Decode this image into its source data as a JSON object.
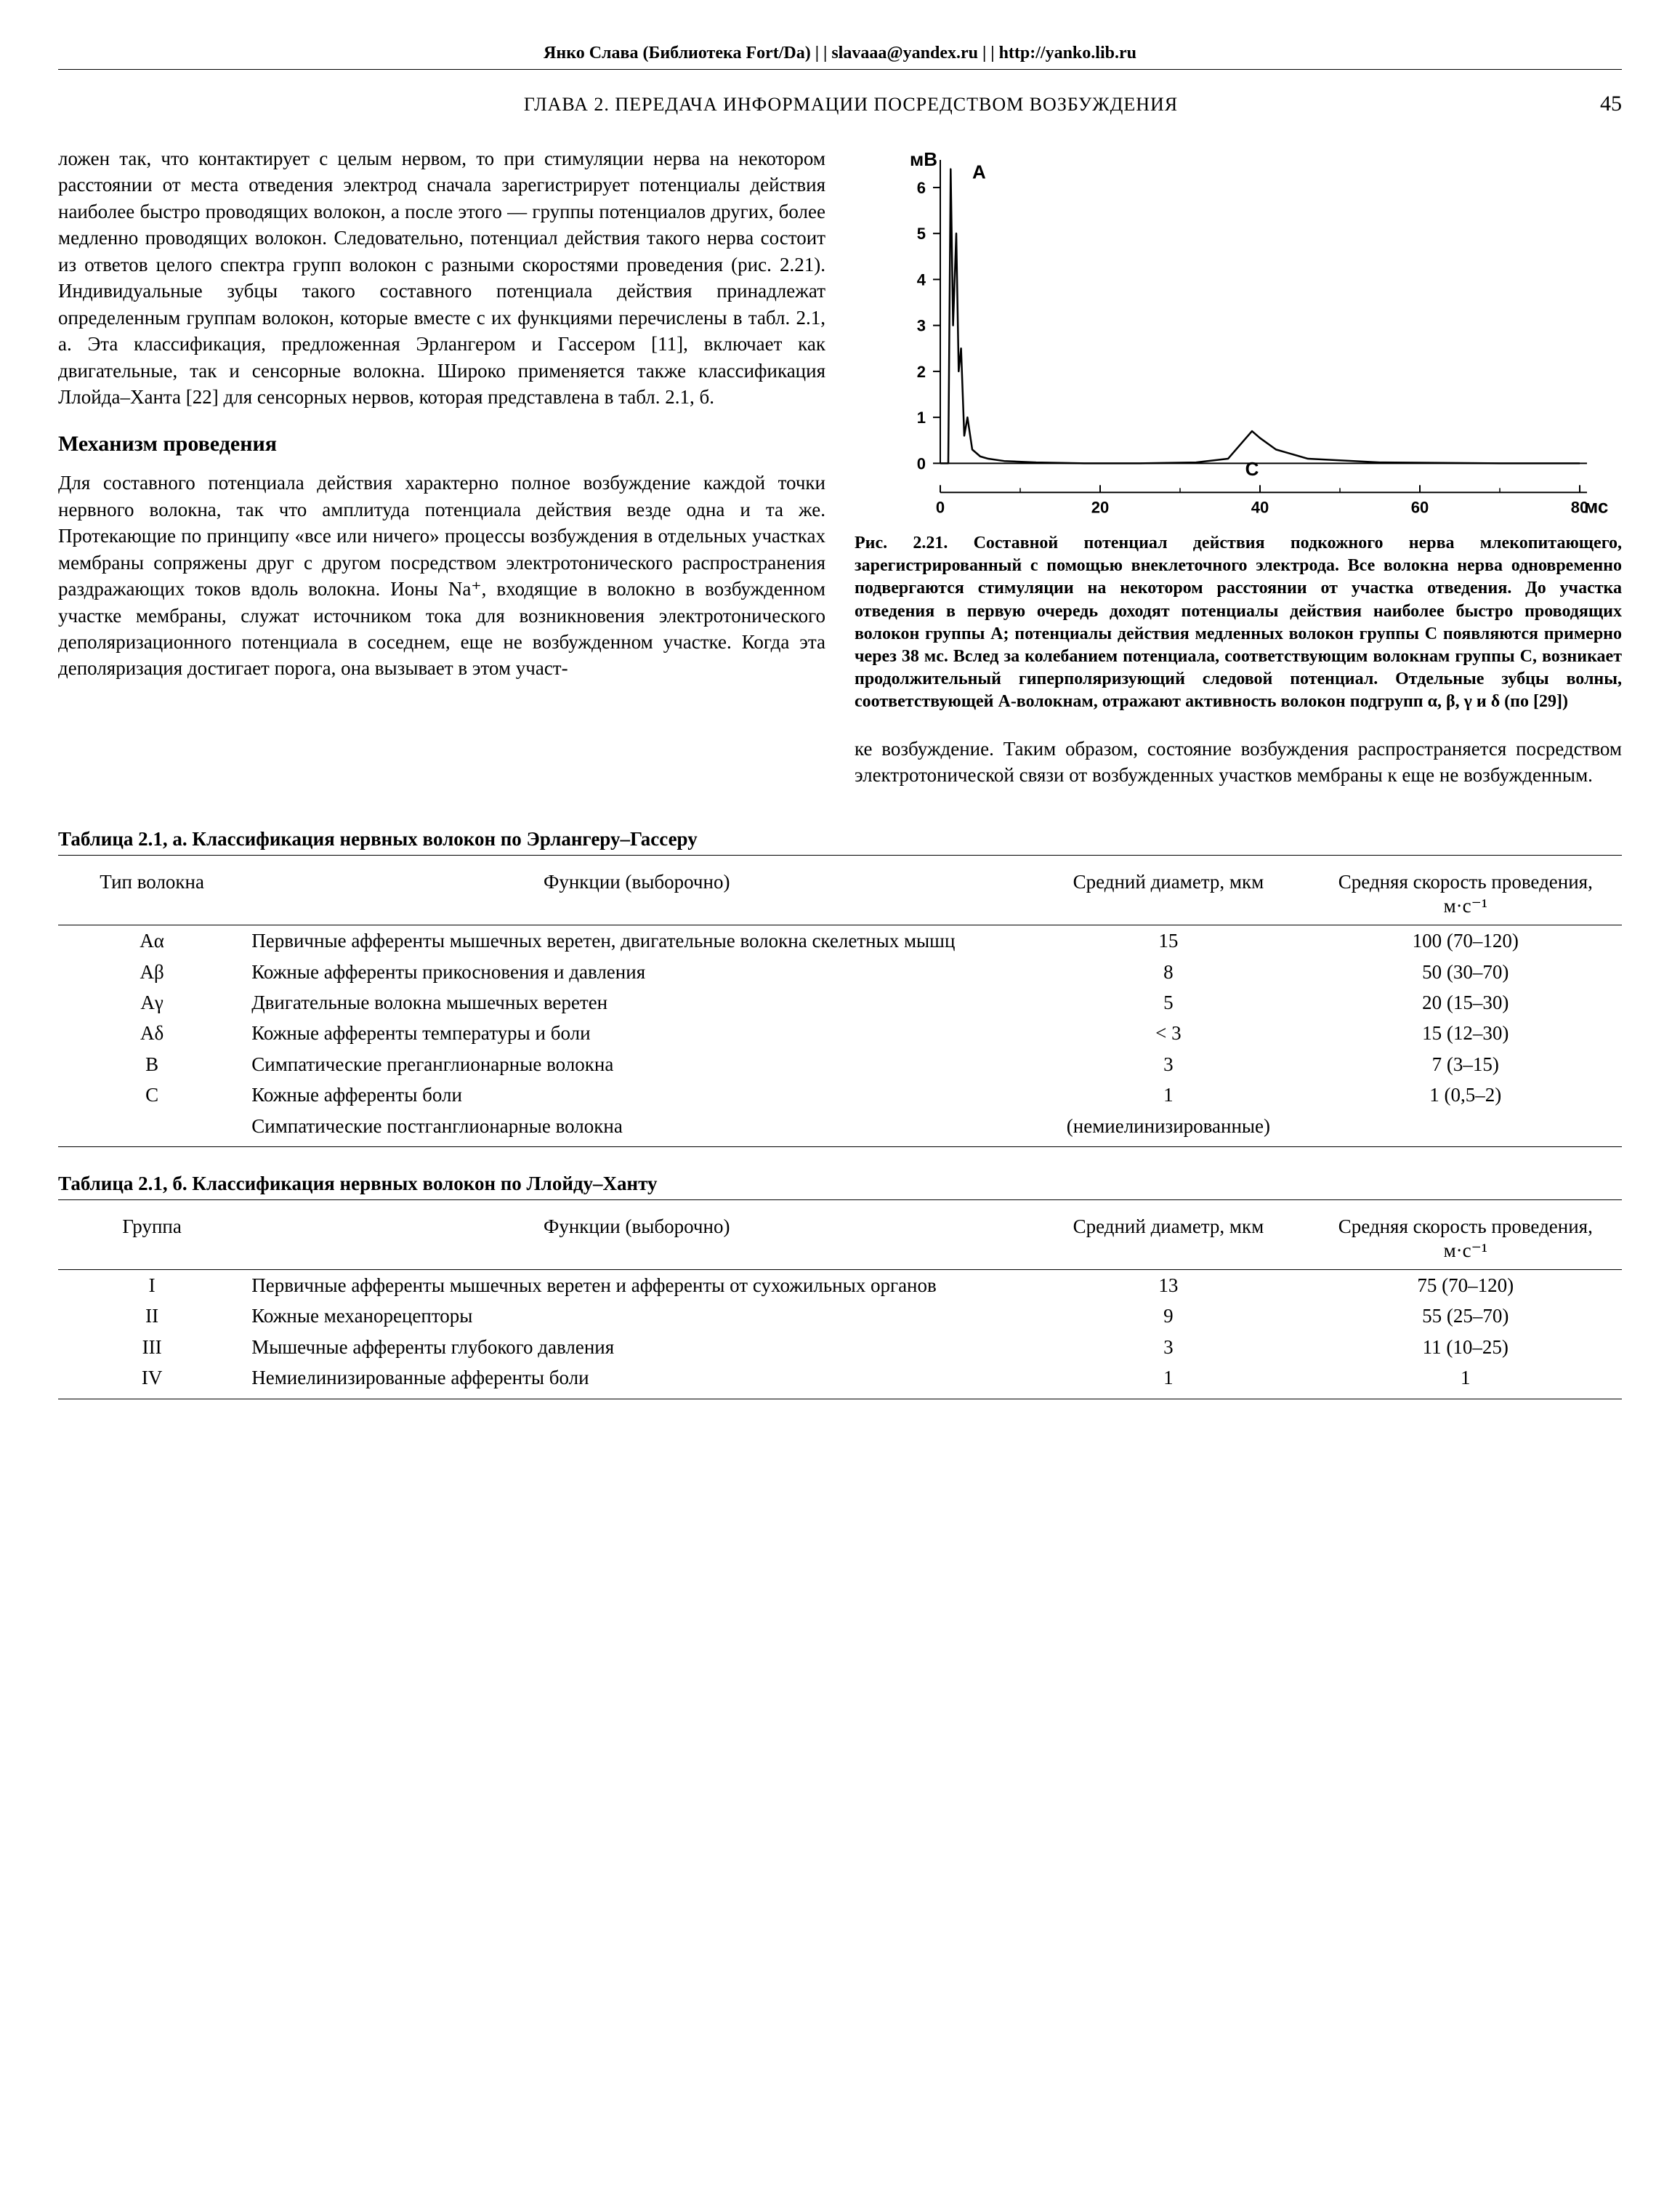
{
  "header": {
    "site_line": "Янко Слава (Библиотека Fort/Da) | | slavaaa@yandex.ru | | http://yanko.lib.ru",
    "chapter": "ГЛАВА 2. ПЕРЕДАЧА ИНФОРМАЦИИ ПОСРЕДСТВОМ ВОЗБУЖДЕНИЯ",
    "page_number": "45"
  },
  "left_column": {
    "para1": "ложен так, что контактирует с целым нервом, то при стимуляции нерва на некотором расстоянии от места отведения электрод сначала зарегистрирует потенциалы действия наиболее быстро проводящих волокон, а после этого — группы потенциалов других, более медленно проводящих волокон. Следовательно, потенциал действия такого нерва состоит из ответов целого спектра групп волокон с разными скоростями проведения (рис. 2.21). Индивидуальные зубцы такого составного потенциала действия принадлежат определенным группам волокон, которые вместе с их функциями перечислены в табл. 2.1, а. Эта классификация, предложенная Эрлангером и Гассером [11], включает как двигательные, так и сенсорные волокна. Широко применяется также классификация Ллойда–Ханта [22] для сенсорных нервов, которая представлена в табл. 2.1, б.",
    "subhead": "Механизм проведения",
    "para2": "Для составного потенциала действия характерно полное возбуждение каждой точки нервного волокна, так что амплитуда потенциала действия везде одна и та же. Протекающие по принципу «все или ничего» процессы возбуждения в отдельных участках мембраны сопряжены друг с другом посредством электротонического распространения раздражающих токов вдоль волокна. Ионы Na⁺, входящие в волокно в возбужденном участке мембраны, служат источником тока для возникновения электротонического деполяризационного потенциала в соседнем, еще не возбужденном участке. Когда эта деполяризация достигает порога, она вызывает в этом участ-"
  },
  "right_column": {
    "chart": {
      "type": "line",
      "y_label": "мВ",
      "y_ticks": [
        0,
        1,
        2,
        3,
        4,
        5,
        6
      ],
      "x_label": "мс",
      "x_ticks": [
        0,
        20,
        40,
        60,
        80
      ],
      "series_label_A": "А",
      "series_label_C": "С",
      "line_color": "#000000",
      "axis_color": "#000000",
      "background": "#ffffff",
      "axis_fontsize": 22,
      "label_fontsize": 26,
      "line_points_x": [
        0,
        1,
        1.3,
        1.6,
        2,
        2.3,
        2.6,
        3,
        3.4,
        4,
        5,
        6,
        8,
        12,
        18,
        25,
        32,
        36,
        38,
        39,
        40,
        42,
        46,
        55,
        70,
        80
      ],
      "line_points_y": [
        0,
        0,
        6.4,
        3.0,
        5.0,
        2.0,
        2.5,
        0.6,
        1.0,
        0.3,
        0.15,
        0.1,
        0.05,
        0.02,
        0,
        0,
        0.02,
        0.1,
        0.5,
        0.7,
        0.55,
        0.3,
        0.1,
        0.02,
        0,
        0
      ]
    },
    "figure_caption_label": "Рис. 2.21.",
    "figure_caption_text": " Составной потенциал действия подкожного нерва млекопитающего, зарегистрированный с помощью внеклеточного электрода. Все волокна нерва одновременно подвергаются стимуляции на некотором расстоянии от участка отведения. До участка отведения в первую очередь доходят потенциалы действия наиболее быстро проводящих волокон группы А; потенциалы действия медленных волокон группы С появляются примерно через 38 мс. Вслед за колебанием потенциала, соответствующим волокнам группы С, возникает продолжительный гиперполяризующий следовой потенциал. Отдельные зубцы волны, соответствующей А-волокнам, отражают активность волокон подгрупп α, β, γ и δ (по [29])",
    "para_bottom": "ке возбуждение. Таким образом, состояние возбуждения распространяется посредством электротонической связи от возбужденных участков мембраны к еще не возбужденным."
  },
  "table_a": {
    "title": "Таблица 2.1, а. Классификация нервных волокон по Эрлангеру–Гассеру",
    "headers": {
      "type": "Тип волокна",
      "func": "Функции (выборочно)",
      "diam": "Средний диаметр, мкм",
      "vel": "Средняя скорость проведения, м·с⁻¹"
    },
    "rows": [
      {
        "type": "Аα",
        "func": "Первичные афференты мышечных веретен, двигательные волокна скелетных мышц",
        "diam": "15",
        "vel": "100 (70–120)"
      },
      {
        "type": "Аβ",
        "func": "Кожные афференты прикосновения и давления",
        "diam": "8",
        "vel": "50 (30–70)"
      },
      {
        "type": "Аγ",
        "func": "Двигательные волокна мышечных веретен",
        "diam": "5",
        "vel": "20 (15–30)"
      },
      {
        "type": "Аδ",
        "func": "Кожные афференты температуры и боли",
        "diam": "< 3",
        "vel": "15 (12–30)"
      },
      {
        "type": "В",
        "func": "Симпатические преганглионарные волокна",
        "diam": "3",
        "vel": "7 (3–15)"
      },
      {
        "type": "С",
        "func": "Кожные афференты боли",
        "diam": "1",
        "vel": "1 (0,5–2)"
      },
      {
        "type": "",
        "func": "Симпатические постганглионарные волокна",
        "diam": "(немиелинизированные)",
        "vel": ""
      }
    ]
  },
  "table_b": {
    "title": "Таблица 2.1, б. Классификация нервных волокон по Ллойду–Ханту",
    "headers": {
      "type": "Группа",
      "func": "Функции (выборочно)",
      "diam": "Средний диаметр, мкм",
      "vel": "Средняя скорость проведения, м·с⁻¹"
    },
    "rows": [
      {
        "type": "I",
        "func": "Первичные афференты мышечных веретен и афференты от сухожильных органов",
        "diam": "13",
        "vel": "75 (70–120)"
      },
      {
        "type": "II",
        "func": "Кожные механорецепторы",
        "diam": "9",
        "vel": "55 (25–70)"
      },
      {
        "type": "III",
        "func": "Мышечные афференты глубокого давления",
        "diam": "3",
        "vel": "11 (10–25)"
      },
      {
        "type": "IV",
        "func": "Немиелинизированные афференты боли",
        "diam": "1",
        "vel": "1"
      }
    ]
  }
}
